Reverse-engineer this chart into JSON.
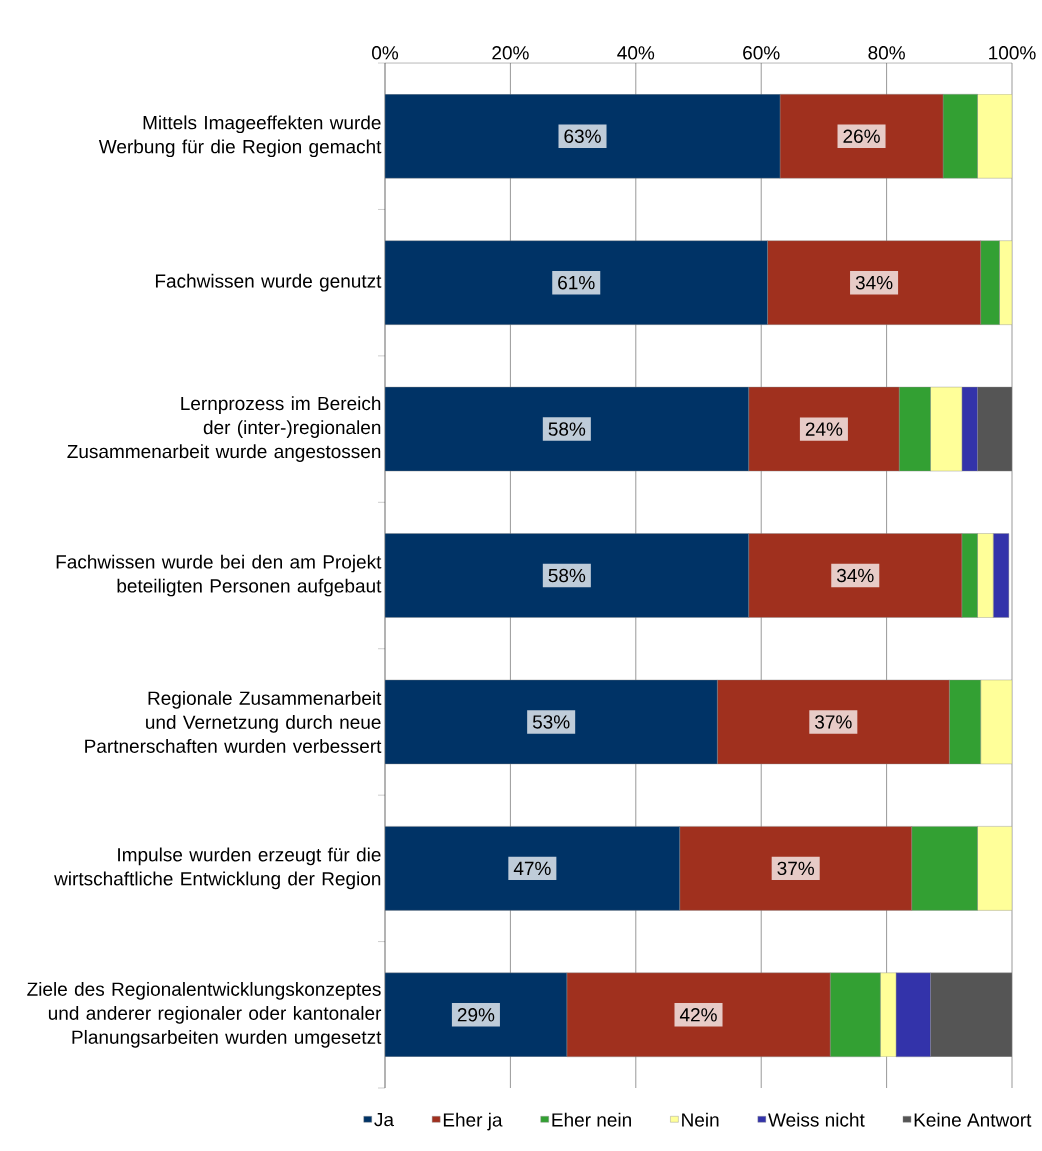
{
  "chart_data": {
    "type": "bar",
    "orientation": "horizontal",
    "stacked": true,
    "grid": "x",
    "legend": "bottom",
    "categories": [
      "Mittels Imageeffekten wurde Werbung für die Region gemacht",
      "Fachwissen wurde genutzt",
      "Lernprozess im Bereich der (inter-)regionalen Zusammenarbeit wurde angestossen",
      "Fachwissen wurde bei den am Projekt beteiligten Personen aufgebaut",
      "Regionale Zusammenarbeit und Vernetzung durch neue Partnerschaften wurden verbessert",
      "Impulse wurden erzeugt für die wirtschaftliche Entwicklung der Region",
      "Ziele des Regionalentwicklungskonzeptes und anderer regionaler oder kantonaler Planungsarbeiten wurden umgesetzt"
    ],
    "xlim": [
      0,
      100
    ],
    "xticks": [
      {
        "value": 0,
        "label": "0%"
      },
      {
        "value": 20,
        "label": "20%"
      },
      {
        "value": 40,
        "label": "40%"
      },
      {
        "value": 60,
        "label": "60%"
      },
      {
        "value": 80,
        "label": "80%"
      },
      {
        "value": 100,
        "label": "100%"
      }
    ],
    "series": [
      {
        "name": "Ja",
        "color": "#003366",
        "values": [
          63,
          61,
          58,
          58,
          53,
          47,
          29
        ],
        "value_labels": [
          "63%",
          "61%",
          "58%",
          "58%",
          "53%",
          "47%",
          "29%"
        ]
      },
      {
        "name": "Eher ja",
        "color": "#a0301e",
        "values": [
          26,
          34,
          24,
          34,
          37,
          37,
          42
        ],
        "value_labels": [
          "26%",
          "34%",
          "24%",
          "34%",
          "37%",
          "37%",
          "42%"
        ]
      },
      {
        "name": "Eher nein",
        "color": "#33a033",
        "values": [
          5.5,
          3,
          5,
          2.5,
          5,
          10.5,
          8
        ]
      },
      {
        "name": "Nein",
        "color": "#ffff99",
        "values": [
          5.5,
          2,
          5,
          2.5,
          5,
          5.5,
          2.5
        ]
      },
      {
        "name": "Weiss nicht",
        "color": "#3333aa",
        "values": [
          null,
          null,
          2.5,
          2.5,
          null,
          null,
          5.5
        ]
      },
      {
        "name": "Keine Antwort",
        "color": "#555555",
        "values": [
          null,
          null,
          5.5,
          null,
          null,
          null,
          13
        ]
      }
    ]
  }
}
